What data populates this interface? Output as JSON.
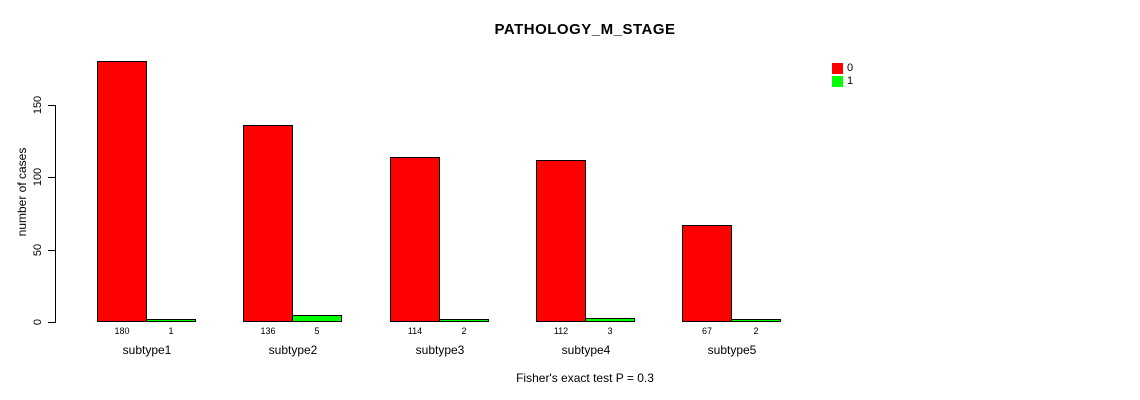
{
  "page": {
    "background": "#ffffff",
    "text_color": "#000000"
  },
  "chart_data": {
    "type": "bar",
    "title": "PATHOLOGY_M_STAGE",
    "xlabel": "",
    "ylabel": "number of cases",
    "categories": [
      "subtype1",
      "subtype2",
      "subtype3",
      "subtype4",
      "subtype5"
    ],
    "series": [
      {
        "name": "0",
        "color": "#FF0000",
        "values": [
          180,
          136,
          114,
          112,
          67
        ]
      },
      {
        "name": "1",
        "color": "#00FF00",
        "values": [
          1,
          5,
          2,
          3,
          2
        ]
      }
    ],
    "bar_value_labels_shown": true,
    "yticks": [
      0,
      50,
      100,
      150
    ],
    "ylim": [
      0,
      185
    ],
    "grid": false,
    "legend_position": "top-right",
    "legend": [
      {
        "label": "0",
        "color": "#FF0000"
      },
      {
        "label": "1",
        "color": "#00FF00"
      }
    ],
    "annotation": "Fisher's exact test P = 0.3"
  }
}
